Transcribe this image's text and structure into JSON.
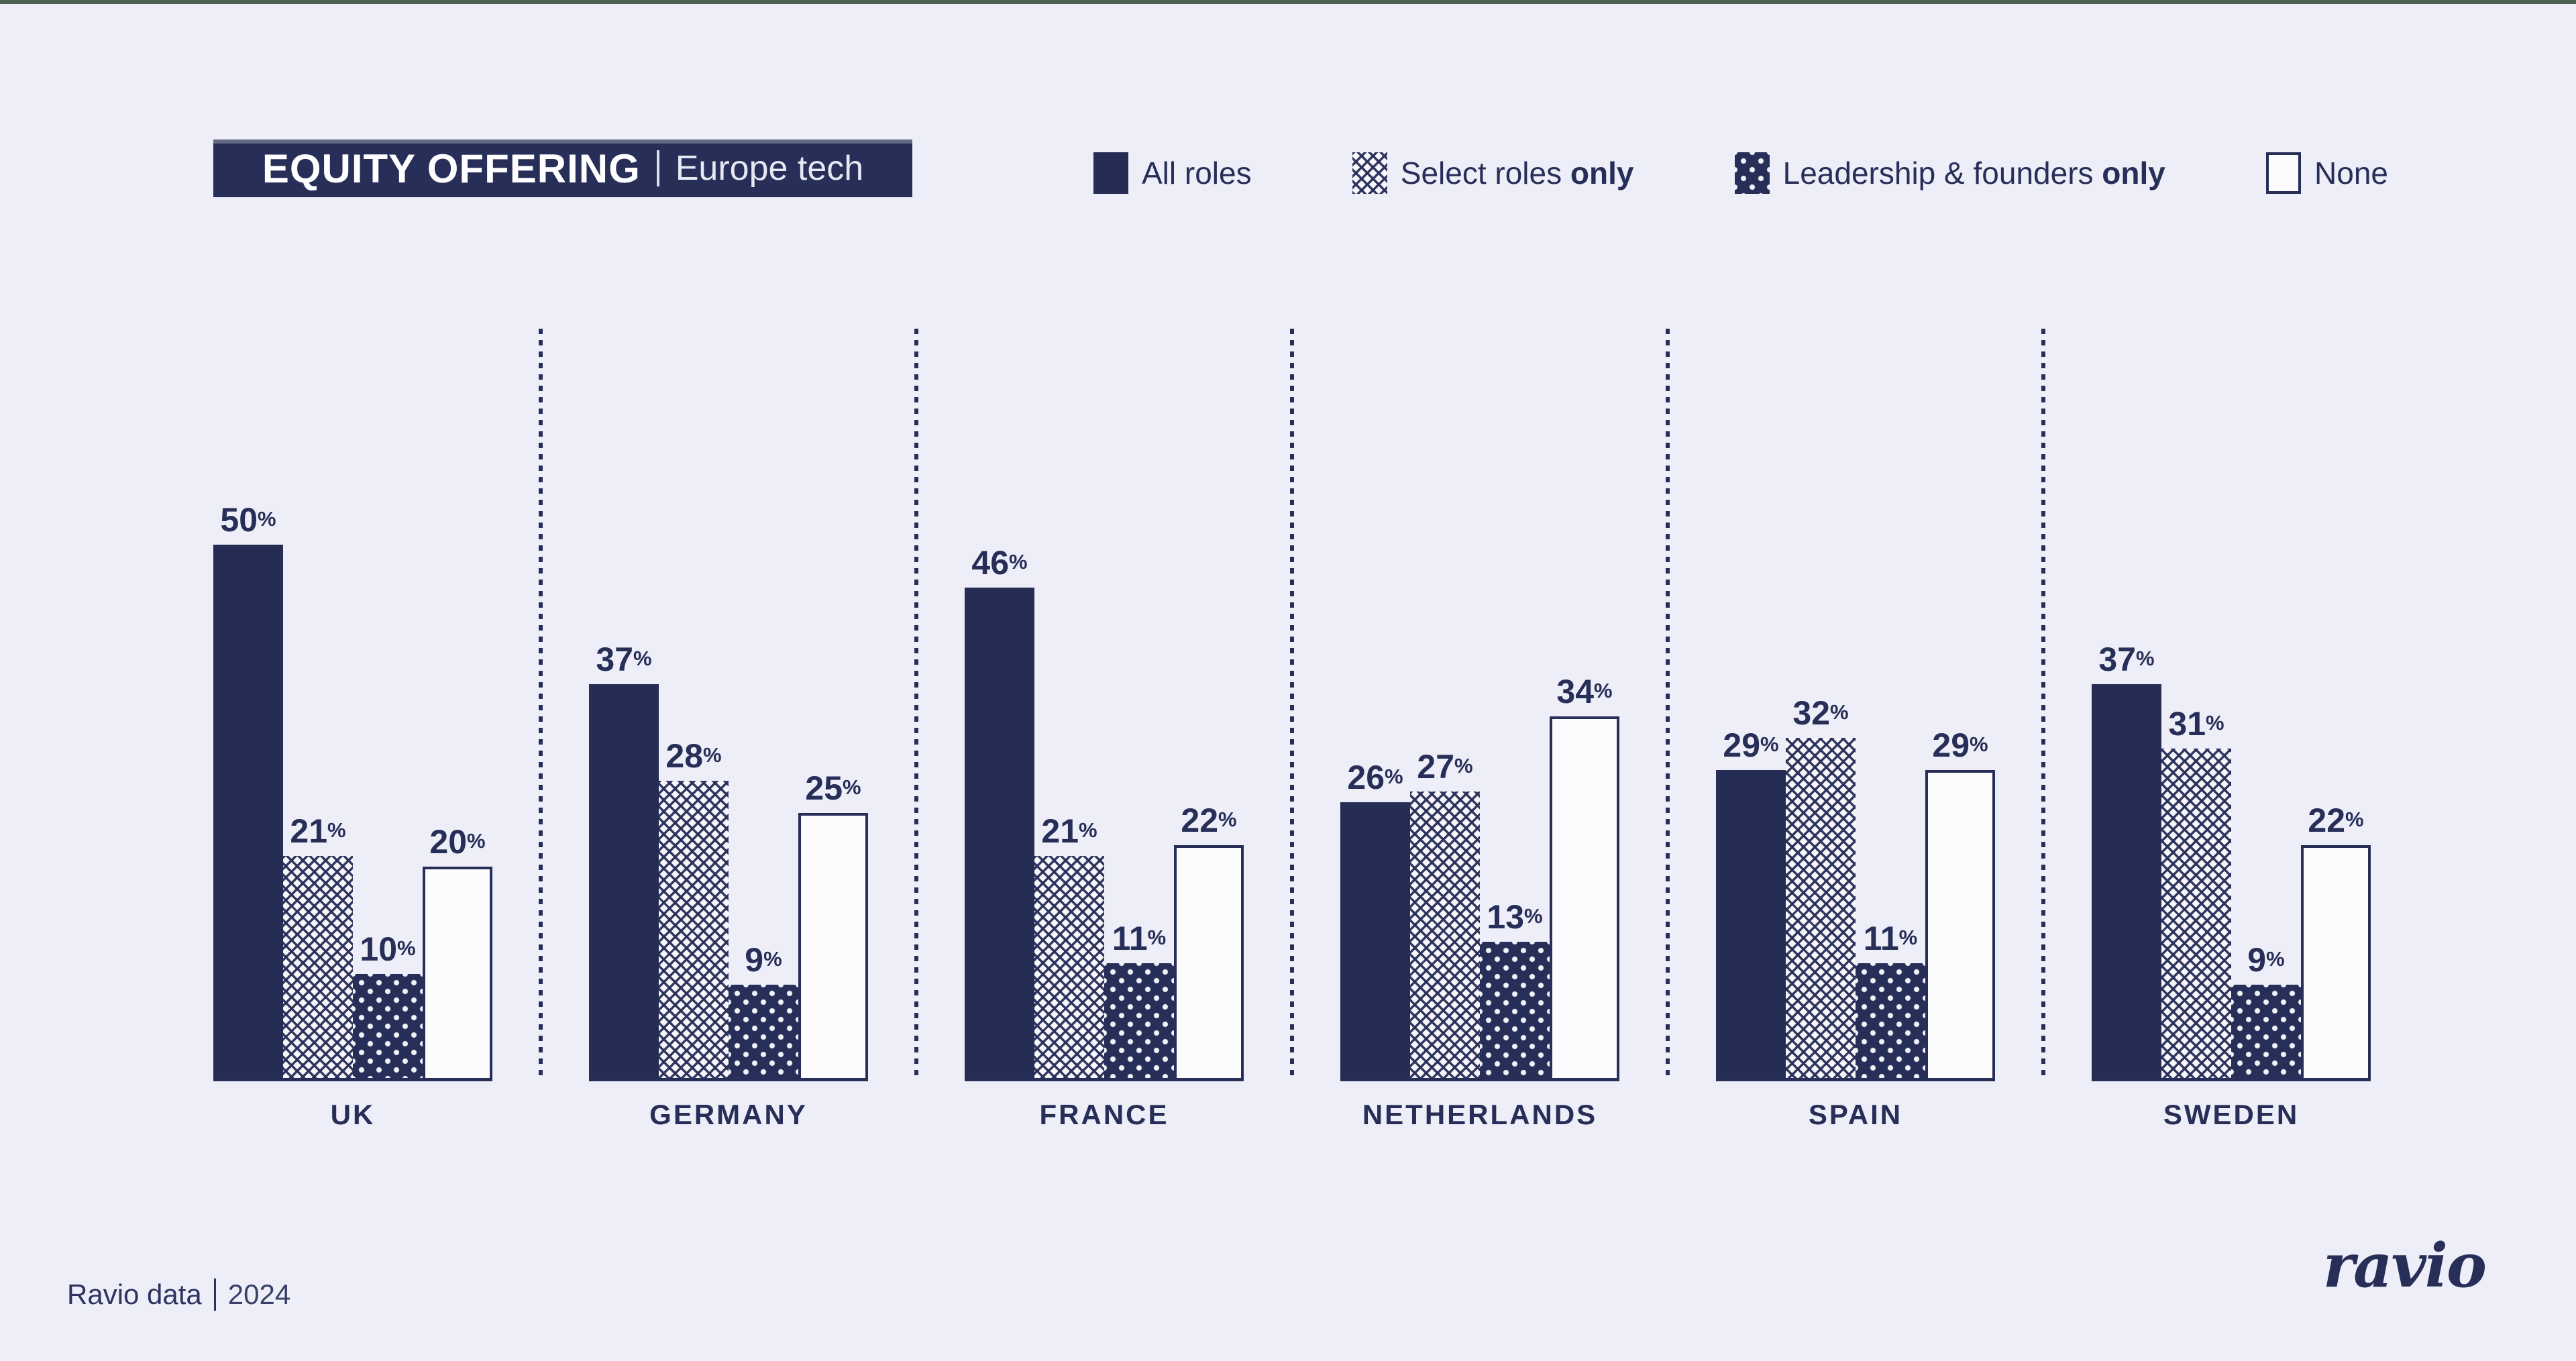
{
  "colors": {
    "background": "#edeef8",
    "navy": "#272e57",
    "top_strip": "#4c624f",
    "none_bar_fill": "#fcfcff"
  },
  "title": {
    "main": "EQUITY OFFERING",
    "separator": "|",
    "sub": "Europe tech"
  },
  "legend": [
    {
      "label_prefix": "All roles",
      "label_bold": "",
      "pattern": "solid"
    },
    {
      "label_prefix": "Select roles ",
      "label_bold": "only",
      "pattern": "crosshatch"
    },
    {
      "label_prefix": "Leadership & founders ",
      "label_bold": "only",
      "pattern": "dots"
    },
    {
      "label_prefix": "None",
      "label_bold": "",
      "pattern": "none"
    }
  ],
  "chart_data": {
    "type": "bar",
    "unit": "%",
    "categories": [
      "UK",
      "GERMANY",
      "FRANCE",
      "NETHERLANDS",
      "SPAIN",
      "SWEDEN"
    ],
    "series": [
      {
        "name": "All roles",
        "pattern": "solid",
        "values": [
          50,
          37,
          46,
          26,
          29,
          37
        ]
      },
      {
        "name": "Select roles only",
        "pattern": "crosshatch",
        "values": [
          21,
          28,
          21,
          27,
          32,
          31
        ]
      },
      {
        "name": "Leadership & founders only",
        "pattern": "dots",
        "values": [
          10,
          9,
          11,
          13,
          11,
          9
        ]
      },
      {
        "name": "None",
        "pattern": "none",
        "values": [
          20,
          25,
          22,
          34,
          29,
          22
        ]
      }
    ],
    "ylim": [
      0,
      50
    ],
    "grid": false,
    "legend_position": "top",
    "value_labels": "above bars, percent sign",
    "title": "EQUITY OFFERING | Europe tech"
  },
  "footer": {
    "source": "Ravio data",
    "separator": "|",
    "year": "2024",
    "logo": "ravio"
  }
}
